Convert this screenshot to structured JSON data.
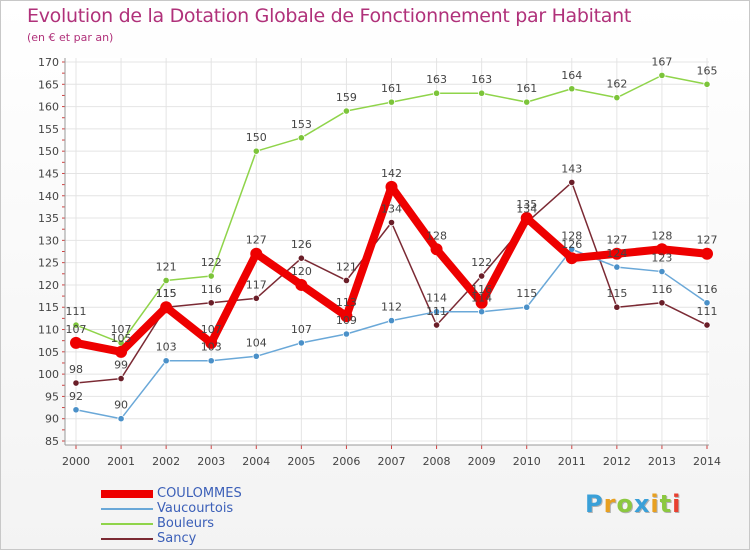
{
  "chart_data": {
    "type": "line",
    "title": "Evolution de la Dotation Globale de Fonctionnement par Habitant",
    "subtitle": "(en € et par an)",
    "x": [
      "2000",
      "2001",
      "2002",
      "2003",
      "2004",
      "2005",
      "2006",
      "2007",
      "2008",
      "2009",
      "2010",
      "2011",
      "2012",
      "2013",
      "2014"
    ],
    "ylim": [
      85,
      170
    ],
    "yticks": [
      85,
      90,
      95,
      100,
      105,
      110,
      115,
      120,
      125,
      130,
      135,
      140,
      145,
      150,
      155,
      160,
      165,
      170
    ],
    "grid": true,
    "legend_position": "bottom-left",
    "series": [
      {
        "name": "Bouleurs",
        "color": "#8fd44a",
        "point_color": "#7cc43a",
        "values": [
          111,
          107,
          121,
          122,
          150,
          153,
          159,
          161,
          163,
          163,
          161,
          164,
          162,
          167,
          165
        ]
      },
      {
        "name": "Sancy",
        "color": "#7b2a34",
        "point_color": "#6a1e28",
        "values": [
          98,
          99,
          115,
          116,
          117,
          126,
          121,
          134,
          111,
          122,
          134,
          143,
          115,
          116,
          111
        ]
      },
      {
        "name": "Vaucourtois",
        "color": "#6aa8d8",
        "point_color": "#4a90c8",
        "values": [
          92,
          90,
          103,
          103,
          104,
          107,
          109,
          112,
          114,
          114,
          115,
          128,
          124,
          123,
          116
        ]
      },
      {
        "name": "COULOMMES",
        "color": "#ee0000",
        "point_color": "#ee0000",
        "values": [
          107,
          105,
          115,
          107,
          127,
          120,
          113,
          142,
          128,
          116,
          135,
          126,
          127,
          128,
          127
        ]
      }
    ]
  },
  "legend": {
    "items": [
      {
        "name": "COULOMMES",
        "color": "#ee0000"
      },
      {
        "name": "Vaucourtois",
        "color": "#6aa8d8"
      },
      {
        "name": "Bouleurs",
        "color": "#8fd44a"
      },
      {
        "name": "Sancy",
        "color": "#7b2a34"
      }
    ]
  },
  "logo": {
    "letters": [
      "P",
      "r",
      "o",
      "x",
      "i",
      "t",
      "i"
    ],
    "colors": [
      "#3aa0d8",
      "#e8a020",
      "#8cc840",
      "#3aa0d8",
      "#e8a020",
      "#8cc840",
      "#e84030"
    ]
  }
}
